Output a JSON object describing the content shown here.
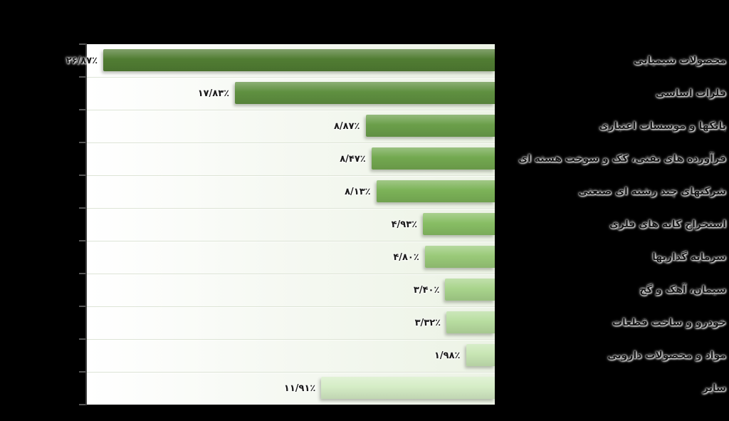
{
  "chart_data": {
    "type": "bar",
    "orientation": "horizontal-rtl",
    "title": "",
    "xlabel": "",
    "ylabel": "",
    "xlim": [
      0,
      28
    ],
    "grid": false,
    "legend": "none",
    "background_color": "#000000",
    "plot_background_color": "#f4f8f0",
    "axis_color": "#3c3c3c",
    "categories": [
      "محصولات شیمیایی",
      "فلزات اساسی",
      "بانکها و موسسات اعتباری",
      "فرآورده های نفتی، کک و سوخت هسته ای",
      "شرکتهای چند رشته ای صنعتی",
      "استخراج کانه های فلزی",
      "سرمایه گذاریها",
      "سیمان، آهک و گچ",
      "خودرو و ساخت قطعات",
      "مواد و محصولات دارویی",
      "سایر"
    ],
    "values": [
      26.87,
      17.83,
      8.87,
      8.47,
      8.13,
      4.93,
      4.8,
      3.4,
      3.32,
      1.98,
      11.91
    ],
    "value_labels": [
      "۲۶/۸۷٪",
      "۱۷/۸۳٪",
      "۸/۸۷٪",
      "۸/۴۷٪",
      "۸/۱۳٪",
      "۴/۹۳٪",
      "۴/۸۰٪",
      "۳/۴۰٪",
      "۳/۳۲٪",
      "۱/۹۸٪",
      "۱۱/۹۱٪"
    ],
    "bar_colors": [
      "#517d33",
      "#5f9040",
      "#6b9f4a",
      "#73a950",
      "#7cb358",
      "#88be64",
      "#9aca79",
      "#a9d48c",
      "#b8dda0",
      "#c8e6b4",
      "#d5edc6"
    ]
  }
}
